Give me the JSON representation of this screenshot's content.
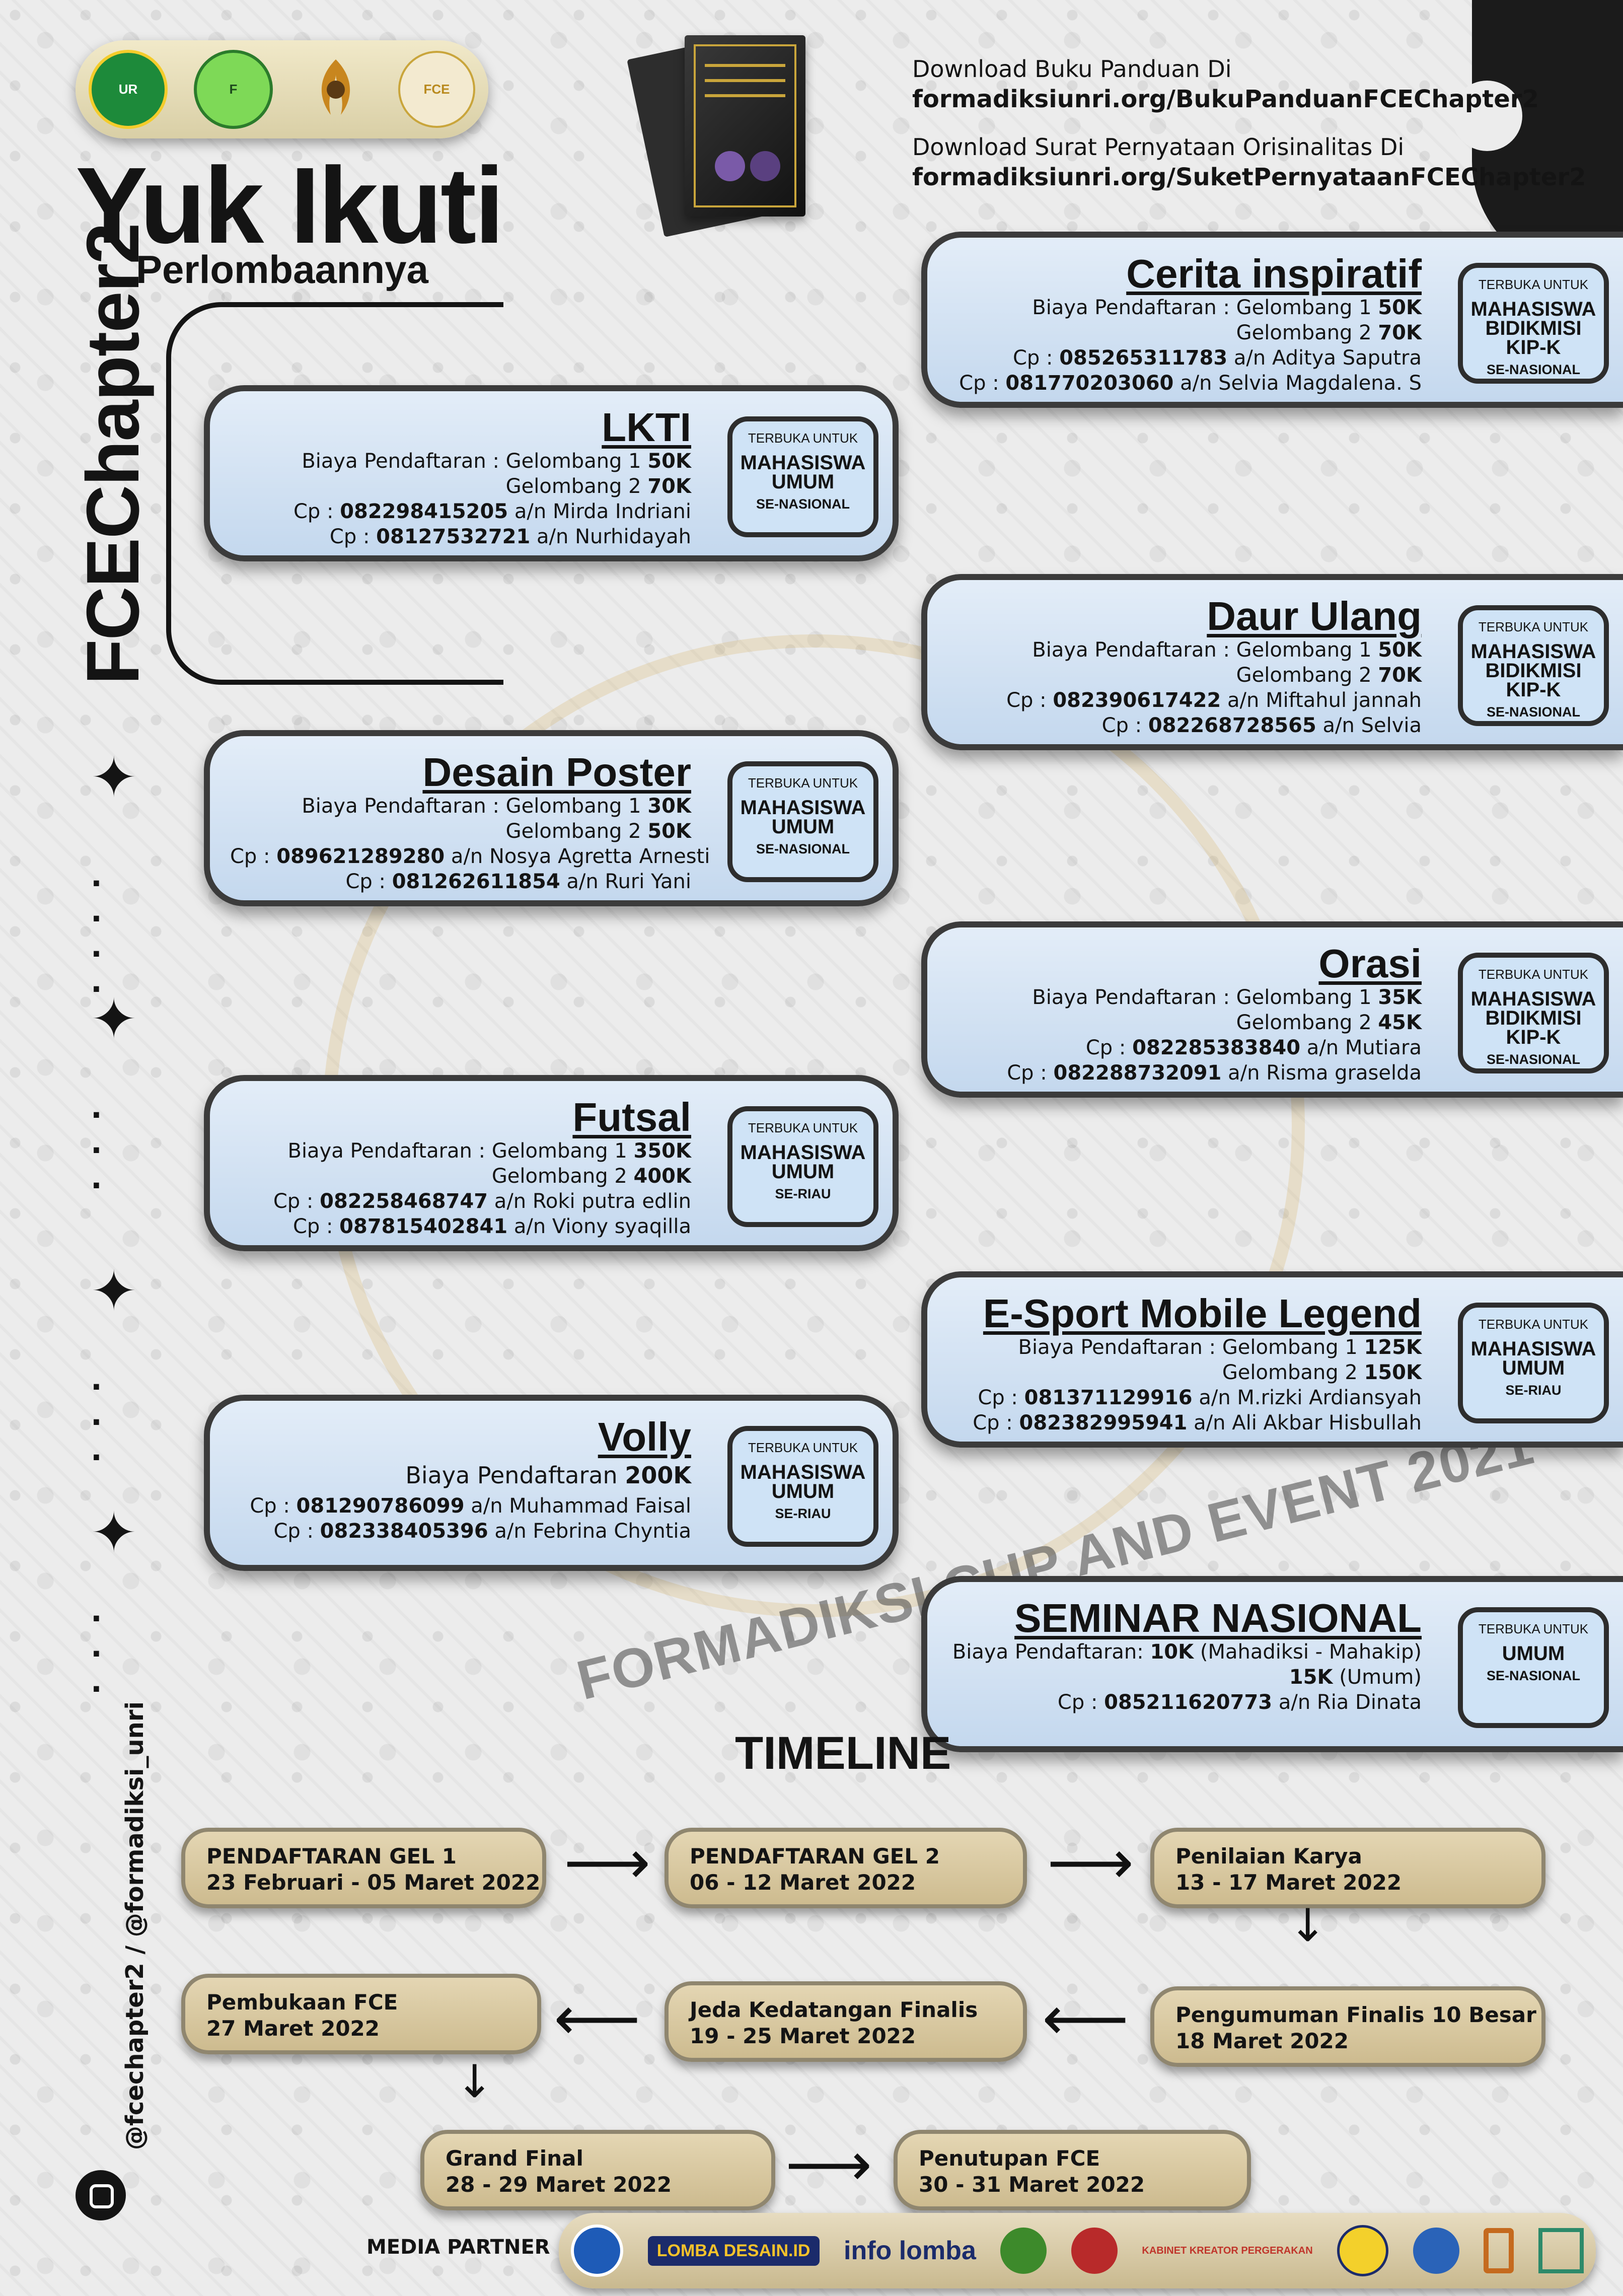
{
  "header": {
    "logos": [
      "university-logo",
      "formadiksi-logo",
      "phoenix-logo",
      "fce-logo"
    ],
    "title": "Yuk Ikuti",
    "subtitle": "Perlombaannya",
    "vertical_title": "FCEChapter2",
    "download_guide_label": "Download Buku Panduan Di",
    "download_guide_url": "formadiksiunri.org/BukuPanduanFCEChapter2",
    "download_statement_label": "Download Surat Pernyataan Orisinalitas Di",
    "download_statement_url": "formadiksiunri.org/SuketPernyataanFCEChapter2"
  },
  "competitions": [
    {
      "title": "Cerita inspiratif",
      "fee": "Biaya Pendaftaran : Gelombang 1 ",
      "fee1": "50K",
      "fee_g2": "Gelombang 2 ",
      "fee2": "70K",
      "cp1": "085265311783",
      "cp1_name": " a/n Aditya Saputra",
      "cp2": "081770203060",
      "cp2_name": " a/n Selvia Magdalena. S",
      "open": "TERBUKA UNTUK",
      "who": "MAHASISWA BIDIKMISI KIP-K",
      "scope": "SE-NASIONAL"
    },
    {
      "title": "LKTI",
      "fee": "Biaya Pendaftaran : Gelombang 1 ",
      "fee1": "50K",
      "fee_g2": "Gelombang 2 ",
      "fee2": "70K",
      "cp1": "082298415205",
      "cp1_name": " a/n Mirda Indriani",
      "cp2": "08127532721",
      "cp2_name": " a/n Nurhidayah",
      "open": "TERBUKA UNTUK",
      "who": "MAHASISWA UMUM",
      "scope": "SE-NASIONAL"
    },
    {
      "title": "Daur Ulang",
      "fee": "Biaya Pendaftaran : Gelombang 1 ",
      "fee1": "50K",
      "fee_g2": "Gelombang 2 ",
      "fee2": "70K",
      "cp1": "082390617422",
      "cp1_name": " a/n Miftahul jannah",
      "cp2": "082268728565",
      "cp2_name": " a/n Selvia",
      "open": "TERBUKA UNTUK",
      "who": "MAHASISWA BIDIKMISI KIP-K",
      "scope": "SE-NASIONAL"
    },
    {
      "title": "Desain Poster",
      "fee": "Biaya Pendaftaran : Gelombang 1 ",
      "fee1": "30K",
      "fee_g2": "Gelombang 2 ",
      "fee2": "50K",
      "cp1": "089621289280",
      "cp1_name": " a/n Nosya Agretta Arnesti",
      "cp2": "081262611854",
      "cp2_name": " a/n Ruri Yani",
      "open": "TERBUKA UNTUK",
      "who": "MAHASISWA UMUM",
      "scope": "SE-NASIONAL"
    },
    {
      "title": "Orasi",
      "fee": "Biaya Pendaftaran : Gelombang 1 ",
      "fee1": "35K",
      "fee_g2": "Gelombang 2 ",
      "fee2": "45K",
      "cp1": "082285383840",
      "cp1_name": " a/n Mutiara",
      "cp2": "082288732091",
      "cp2_name": " a/n Risma graselda",
      "open": "TERBUKA UNTUK",
      "who": "MAHASISWA BIDIKMISI KIP-K",
      "scope": "SE-NASIONAL"
    },
    {
      "title": "Futsal",
      "fee": "Biaya Pendaftaran : Gelombang 1 ",
      "fee1": "350K",
      "fee_g2": "Gelombang 2 ",
      "fee2": "400K",
      "cp1": "082258468747",
      "cp1_name": " a/n Roki putra edlin",
      "cp2": "087815402841",
      "cp2_name": " a/n Viony syaqilla",
      "open": "TERBUKA UNTUK",
      "who": "MAHASISWA UMUM",
      "scope": "SE-RIAU"
    },
    {
      "title": "E-Sport Mobile Legend",
      "fee": "Biaya Pendaftaran : Gelombang 1 ",
      "fee1": "125K",
      "fee_g2": "Gelombang 2 ",
      "fee2": "150K",
      "cp1": "081371129916",
      "cp1_name": " a/n M.rizki Ardiansyah",
      "cp2": "082382995941",
      "cp2_name": " a/n Ali Akbar Hisbullah",
      "open": "TERBUKA UNTUK",
      "who": "MAHASISWA UMUM",
      "scope": "SE-RIAU"
    },
    {
      "title": "Volly",
      "fee": "Biaya Pendaftaran ",
      "fee1": "200K",
      "cp1": "081290786099",
      "cp1_name": " a/n Muhammad Faisal",
      "cp2": "082338405396",
      "cp2_name": " a/n Febrina Chyntia",
      "open": "TERBUKA UNTUK",
      "who": "MAHASISWA UMUM",
      "scope": "SE-RIAU"
    },
    {
      "title": "SEMINAR NASIONAL",
      "fee": "Biaya Pendaftaran:  ",
      "fee1": "10K",
      "fee1_note": " (Mahadiksi - Mahakip)",
      "fee2": "15K",
      "fee2_note": " (Umum)",
      "cp1": "085211620773",
      "cp1_name": " a/n Ria Dinata",
      "open": "TERBUKA UNTUK",
      "who": "UMUM",
      "scope": "SE-NASIONAL"
    }
  ],
  "cp_prefix": "Cp : ",
  "watermark": "FORMADIKSI CUP AND EVENT 2021",
  "timeline": {
    "title": "TIMELINE",
    "steps": [
      {
        "label": "PENDAFTARAN GEL 1",
        "date": "23 Februari - 05 Maret 2022"
      },
      {
        "label": "PENDAFTARAN GEL 2",
        "date": "06 - 12 Maret 2022"
      },
      {
        "label": "Penilaian Karya",
        "date": "13 - 17 Maret 2022"
      },
      {
        "label": "Pengumuman Finalis 10 Besar",
        "date": "18 Maret 2022"
      },
      {
        "label": "Jeda Kedatangan Finalis",
        "date": "19 - 25 Maret 2022"
      },
      {
        "label": "Pembukaan FCE",
        "date": "27 Maret 2022"
      },
      {
        "label": "Grand Final",
        "date": "28 - 29 Maret 2022"
      },
      {
        "label": "Penutupan FCE",
        "date": "30 - 31 Maret 2022"
      }
    ]
  },
  "social": "@fcechapter2 / @formadiksi_unri",
  "media_partner": {
    "label": "MEDIA PARTNER",
    "partners": [
      "INFO LOMBA",
      "LOMBA DESAIN.ID",
      "info lomba",
      "KABINET KREATOR PERGERAKAN"
    ]
  },
  "colors": {
    "card_blue": "#cfe2f5",
    "card_border": "#3b3b3b",
    "timeline_tan": "#d9c9a1",
    "gold": "#d2b060"
  }
}
